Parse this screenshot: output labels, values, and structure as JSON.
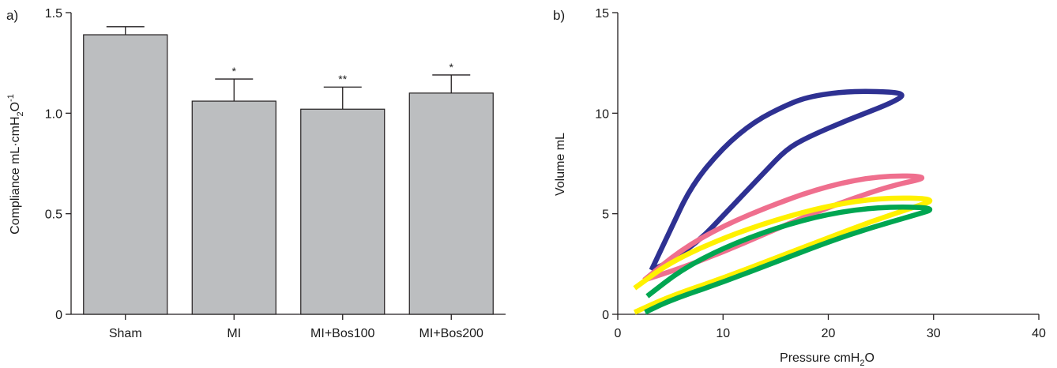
{
  "chart_data": [
    {
      "panel_label": "a)",
      "type": "bar",
      "categories": [
        "Sham",
        "MI",
        "MI+Bos100",
        "MI+Bos200"
      ],
      "values": [
        1.39,
        1.06,
        1.02,
        1.1
      ],
      "errors": [
        0.04,
        0.11,
        0.11,
        0.09
      ],
      "significance": [
        "",
        "*",
        "**",
        "*"
      ],
      "ylabel_parts": [
        "Compliance mL·cmH",
        "2",
        "O",
        "-1"
      ],
      "ylim": [
        0,
        1.5
      ],
      "yticks": [
        0,
        0.5,
        1.0,
        1.5
      ],
      "ytick_labels": [
        "0",
        "0.5",
        "1.0",
        "1.5"
      ],
      "bar_color": "#bcbec0",
      "edge_color": "#231f20"
    },
    {
      "panel_label": "b)",
      "type": "line",
      "xlabel_parts": [
        "Pressure cmH",
        "2",
        "O"
      ],
      "ylabel": "Volume mL",
      "xlim": [
        0,
        40
      ],
      "ylim": [
        0,
        15
      ],
      "xticks": [
        0,
        10,
        20,
        30,
        40
      ],
      "yticks": [
        0,
        5,
        10,
        15
      ],
      "xtick_labels": [
        "0",
        "10",
        "20",
        "30",
        "40"
      ],
      "ytick_labels": [
        "0",
        "5",
        "10",
        "15"
      ],
      "series": [
        {
          "color": "#2e3192",
          "x": [
            3.2,
            5,
            7,
            10,
            13,
            16,
            18,
            21,
            24,
            27.5,
            26,
            22,
            18,
            16,
            14,
            12,
            10,
            8,
            6,
            4.5,
            3.2
          ],
          "y": [
            2.2,
            4.2,
            6.4,
            8.3,
            9.6,
            10.4,
            10.8,
            11.05,
            11.1,
            11.0,
            10.5,
            9.7,
            8.8,
            8.2,
            7.1,
            6.0,
            4.9,
            3.8,
            3.0,
            2.5,
            2.2
          ]
        },
        {
          "color": "#ef6f8e",
          "x": [
            2.5,
            6,
            10,
            15,
            20,
            25,
            30,
            26,
            22,
            18,
            14,
            10,
            6,
            2.5
          ],
          "y": [
            1.7,
            3.2,
            4.4,
            5.5,
            6.4,
            6.9,
            6.85,
            6.4,
            5.7,
            4.9,
            4.0,
            3.1,
            2.3,
            1.7
          ]
        },
        {
          "color": "#fff100",
          "x": [
            1.6,
            5,
            10,
            15,
            20,
            25,
            30.5,
            28,
            24,
            20,
            15,
            10,
            5,
            1.6
          ],
          "y": [
            1.3,
            2.6,
            3.8,
            4.7,
            5.4,
            5.8,
            5.75,
            5.3,
            4.6,
            3.8,
            2.8,
            1.8,
            0.9,
            0.1
          ]
        },
        {
          "color": "#00a651",
          "x": [
            2.8,
            6,
            10,
            15,
            20,
            25,
            30.5,
            28,
            24,
            20,
            15,
            10,
            5,
            2.6
          ],
          "y": [
            0.9,
            2.2,
            3.3,
            4.3,
            5.0,
            5.35,
            5.3,
            4.9,
            4.3,
            3.6,
            2.6,
            1.6,
            0.7,
            0.1
          ]
        }
      ]
    }
  ]
}
